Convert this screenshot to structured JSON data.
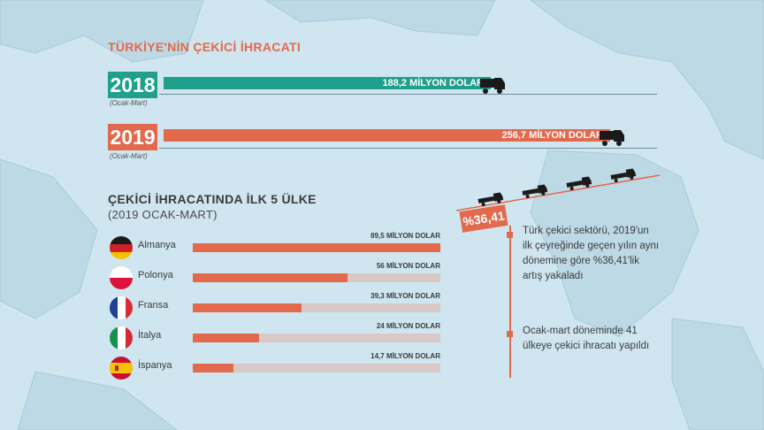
{
  "colors": {
    "teal": "#1f9f8c",
    "orange": "#e2694c",
    "track": "#d8c8c6",
    "title_orange": "#e2694c",
    "dark_text": "#3a3a3a"
  },
  "title": "TÜRKİYE'NİN ÇEKİCİ İHRACATI",
  "period_label": "(Ocak-Mart)",
  "yearly": [
    {
      "year": "2018",
      "label": "188,2 MİLYON DOLAR",
      "value": 188.2,
      "color_key": "teal",
      "icon": "truck-icon"
    },
    {
      "year": "2019",
      "label": "256,7 MİLYON DOLAR",
      "value": 256.7,
      "color_key": "orange",
      "icon": "truck-icon"
    }
  ],
  "top5": {
    "title": "ÇEKİCİ İHRACATINDA İLK 5 ÜLKE",
    "subtitle": "(2019 OCAK-MART)"
  },
  "chart_data": [
    {
      "type": "bar",
      "title": "TÜRKİYE'NİN ÇEKİCİ İHRACATI",
      "categories": [
        "2018",
        "2019"
      ],
      "values": [
        188.2,
        256.7
      ],
      "unit": "MİLYON DOLAR"
    },
    {
      "type": "bar",
      "title": "ÇEKİCİ İHRACATINDA İLK 5 ÜLKE",
      "subtitle": "(2019 OCAK-MART)",
      "categories": [
        "Almanya",
        "Polonya",
        "Fransa",
        "İtalya",
        "İspanya"
      ],
      "values": [
        89.5,
        56,
        39.3,
        24,
        14.7
      ],
      "value_labels": [
        "89,5 MİLYON DOLAR",
        "56 MİLYON DOLAR",
        "39,3 MİLYON DOLAR",
        "24 MİLYON DOLAR",
        "14,7 MİLYON DOLAR"
      ],
      "unit": "MİLYON DOLAR",
      "flags": [
        "germany-flag-icon",
        "poland-flag-icon",
        "france-flag-icon",
        "italy-flag-icon",
        "spain-flag-icon"
      ]
    }
  ],
  "highlight": {
    "percent": "%36,41",
    "icon": "rising-trucks-icon"
  },
  "notes": [
    "Türk çekici sektörü, 2019'un ilk çeyreğinde geçen yılın aynı dönemine göre %36,41'lik artış yakaladı",
    "Ocak-mart döneminde 41 ülkeye çekici ihracatı yapıldı"
  ]
}
